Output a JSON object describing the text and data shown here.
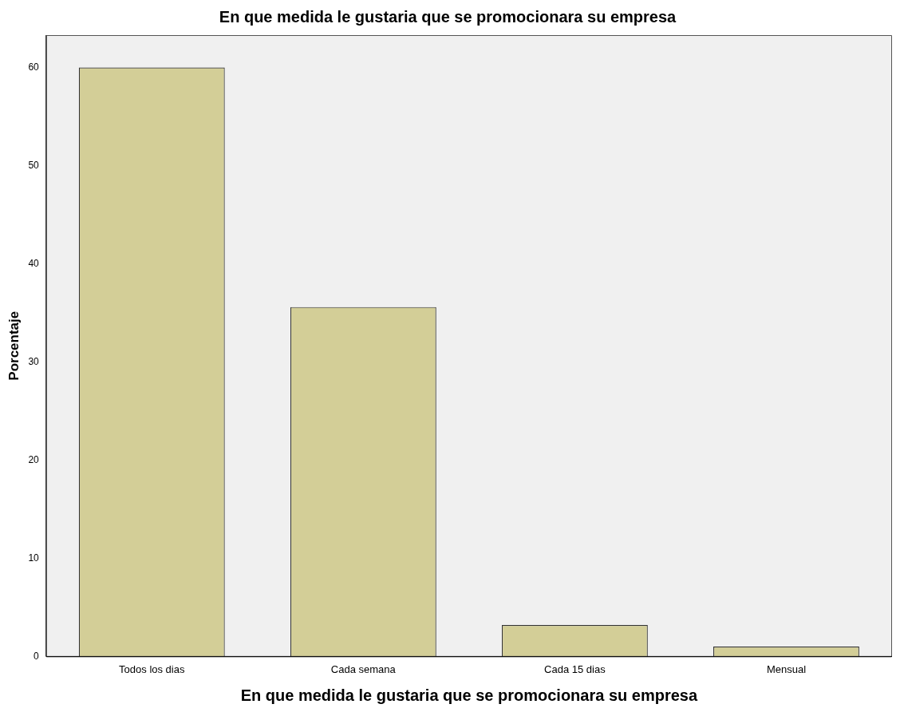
{
  "chart_data": {
    "type": "bar",
    "title": "En que medida le gustaria que se promocionara su empresa",
    "xlabel": "En que medida le gustaria que se promocionara su empresa",
    "ylabel": "Porcentaje",
    "categories": [
      "Todos los dias",
      "Cada semana",
      "Cada 15 dias",
      "Mensual"
    ],
    "values": [
      60,
      35.6,
      3.2,
      1.0
    ],
    "color": "#d3ce97",
    "ylim": [
      0,
      63.3
    ],
    "yticks": [
      0,
      10,
      20,
      30,
      40,
      50,
      60
    ],
    "grid": false,
    "legend": false
  }
}
